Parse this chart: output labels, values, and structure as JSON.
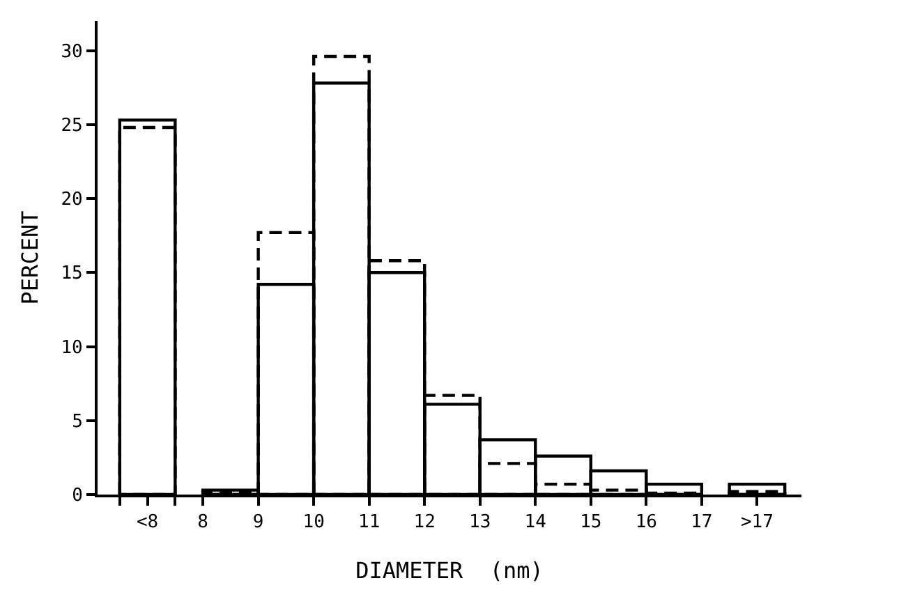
{
  "chart_data": {
    "type": "bar",
    "xlabel": "DIAMETER  (nm)",
    "ylabel": "PERCENT",
    "x": [
      7,
      8.5,
      9.5,
      10.5,
      11.5,
      12.5,
      13.5,
      14.5,
      15.5,
      16.5,
      18
    ],
    "series": [
      {
        "color": "#000000",
        "line_style": "solid",
        "values": [
          25.3,
          0.3,
          14.2,
          27.8,
          15.0,
          6.1,
          3.7,
          2.6,
          1.6,
          0.7,
          0.7
        ]
      },
      {
        "color": "#000000",
        "line_style": "dashed",
        "values": [
          24.8,
          0.2,
          17.7,
          29.6,
          15.8,
          6.7,
          2.1,
          0.7,
          0.3,
          0.1,
          0.2
        ]
      }
    ],
    "xlim": [
      6.1,
      18.8
    ],
    "ylim": [
      0,
      32
    ],
    "xticks": [
      {
        "value": 6.5,
        "label": null
      },
      {
        "value": 7,
        "label": "<8"
      },
      {
        "value": 7.5,
        "label": null
      },
      8,
      9,
      10,
      11,
      12,
      13,
      14,
      15,
      16,
      17,
      {
        "value": 18,
        "label": ">17"
      }
    ],
    "yticks": [
      0,
      5,
      10,
      15,
      20,
      25,
      30
    ]
  }
}
